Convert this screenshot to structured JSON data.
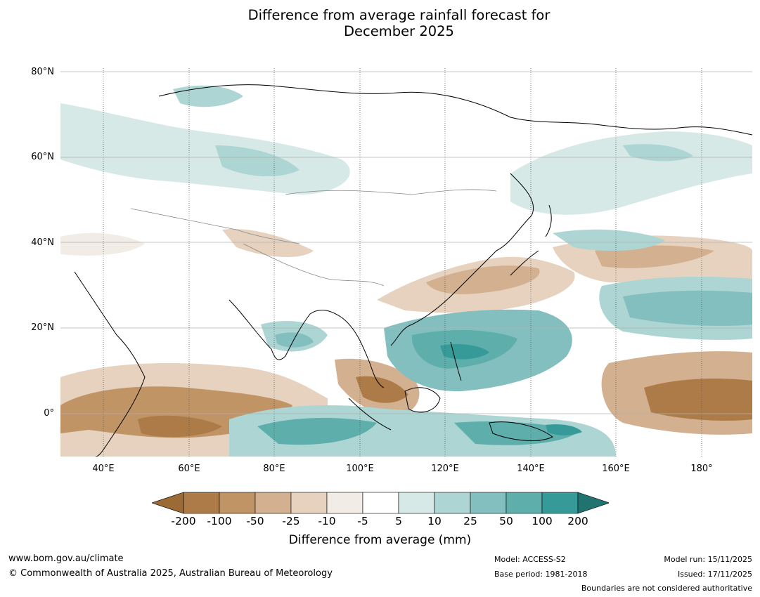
{
  "title": {
    "line1": "Difference from average rainfall forecast for",
    "line2": "December 2025"
  },
  "map": {
    "lat_labels": [
      "80°N",
      "60°N",
      "40°N",
      "20°N",
      "0°"
    ],
    "lon_labels": [
      "40°E",
      "60°E",
      "80°E",
      "100°E",
      "120°E",
      "140°E",
      "160°E",
      "180°"
    ]
  },
  "colorbar": {
    "ticks": [
      "-200",
      "-100",
      "-50",
      "-25",
      "-10",
      "-5",
      "5",
      "10",
      "25",
      "50",
      "100",
      "200"
    ],
    "label": "Difference from average (mm)",
    "colors": {
      "below_200": "#9c6a34",
      "m200_m100": "#ad7b47",
      "m100_m50": "#c09465",
      "m50_m25": "#d3b08f",
      "m25_m10": "#e6d2bf",
      "m10_m5": "#f2ece6",
      "m5_5": "#ffffff",
      "p5_10": "#d6e9e7",
      "p10_25": "#acd5d4",
      "p25_50": "#84bfbf",
      "p50_100": "#5eaeac",
      "p100_200": "#369b98",
      "above_200": "#217370"
    }
  },
  "footer": {
    "website": "www.bom.gov.au/climate",
    "copyright": "© Commonwealth of Australia 2025, Australian Bureau of Meteorology",
    "model": "Model: ACCESS-S2",
    "base_period": "Base period: 1981-2018",
    "model_run": "Model run: 15/11/2025",
    "issued": "Issued: 17/11/2025",
    "disclaimer": "Boundaries are not considered authoritative"
  }
}
